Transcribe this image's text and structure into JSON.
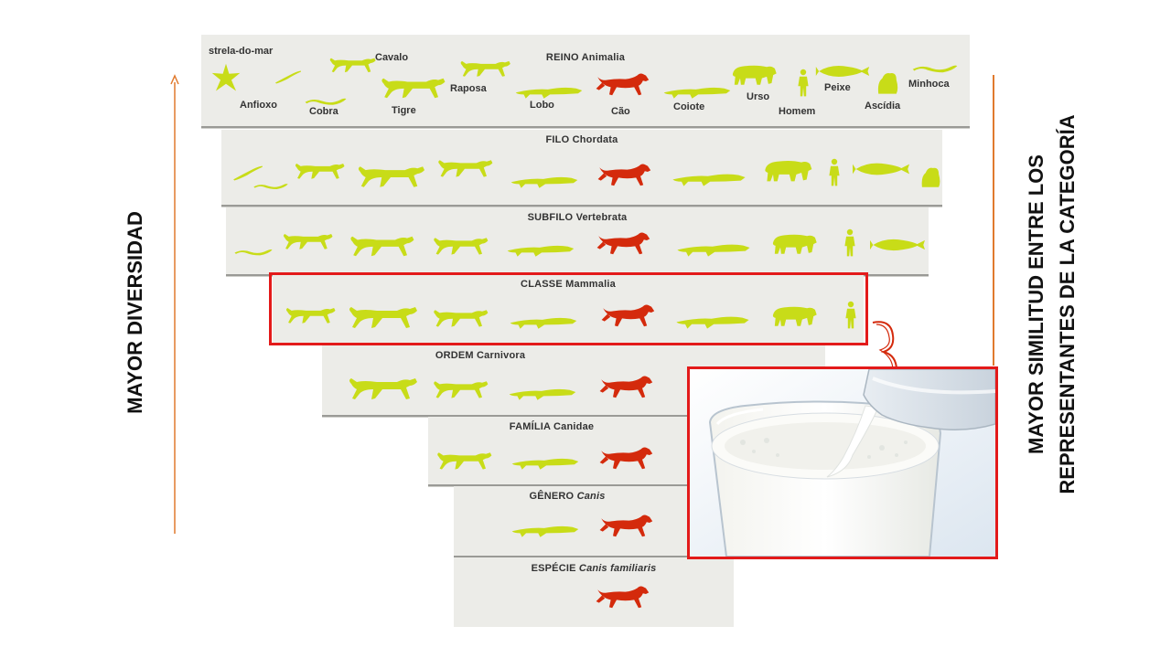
{
  "left_axis": {
    "label": "MAYOR DIVERSIDAD",
    "arrow_color": "#e07a2e"
  },
  "right_axis": {
    "line1": "MAYOR SIMILITUD ENTRE LOS",
    "line2": "REPRESENTANTES DE LA CATEGORÍA",
    "line_color": "#e07a2e"
  },
  "colors": {
    "animal": "#c8dc18",
    "dog": "#d42a0c",
    "highlight": "#e31a1a"
  },
  "reino_labels": {
    "estrela": "strela-do-mar",
    "anfioxo": "Anfioxo",
    "cobra": "Cobra",
    "cavalo": "Cavalo",
    "tigre": "Tigre",
    "raposa": "Raposa",
    "lobo": "Lobo",
    "cao": "Cão",
    "coiote": "Coiote",
    "urso": "Urso",
    "homem": "Homem",
    "peixe": "Peixe",
    "ascidia": "Ascídia",
    "minhoca": "Minhoca"
  },
  "levels": [
    {
      "rank": "REINO",
      "taxon": "Animalia"
    },
    {
      "rank": "FILO",
      "taxon": "Chordata"
    },
    {
      "rank": "SUBFILO",
      "taxon": "Vertebrata"
    },
    {
      "rank": "CLASSE",
      "taxon": "Mammalia"
    },
    {
      "rank": "ORDEM",
      "taxon": "Carnivora"
    },
    {
      "rank": "FAMÍLIA",
      "taxon": "Canidae"
    },
    {
      "rank": "GÊNERO",
      "taxon": "Canis"
    },
    {
      "rank": "ESPÉCIE",
      "taxon": "Canis familiaris"
    }
  ]
}
